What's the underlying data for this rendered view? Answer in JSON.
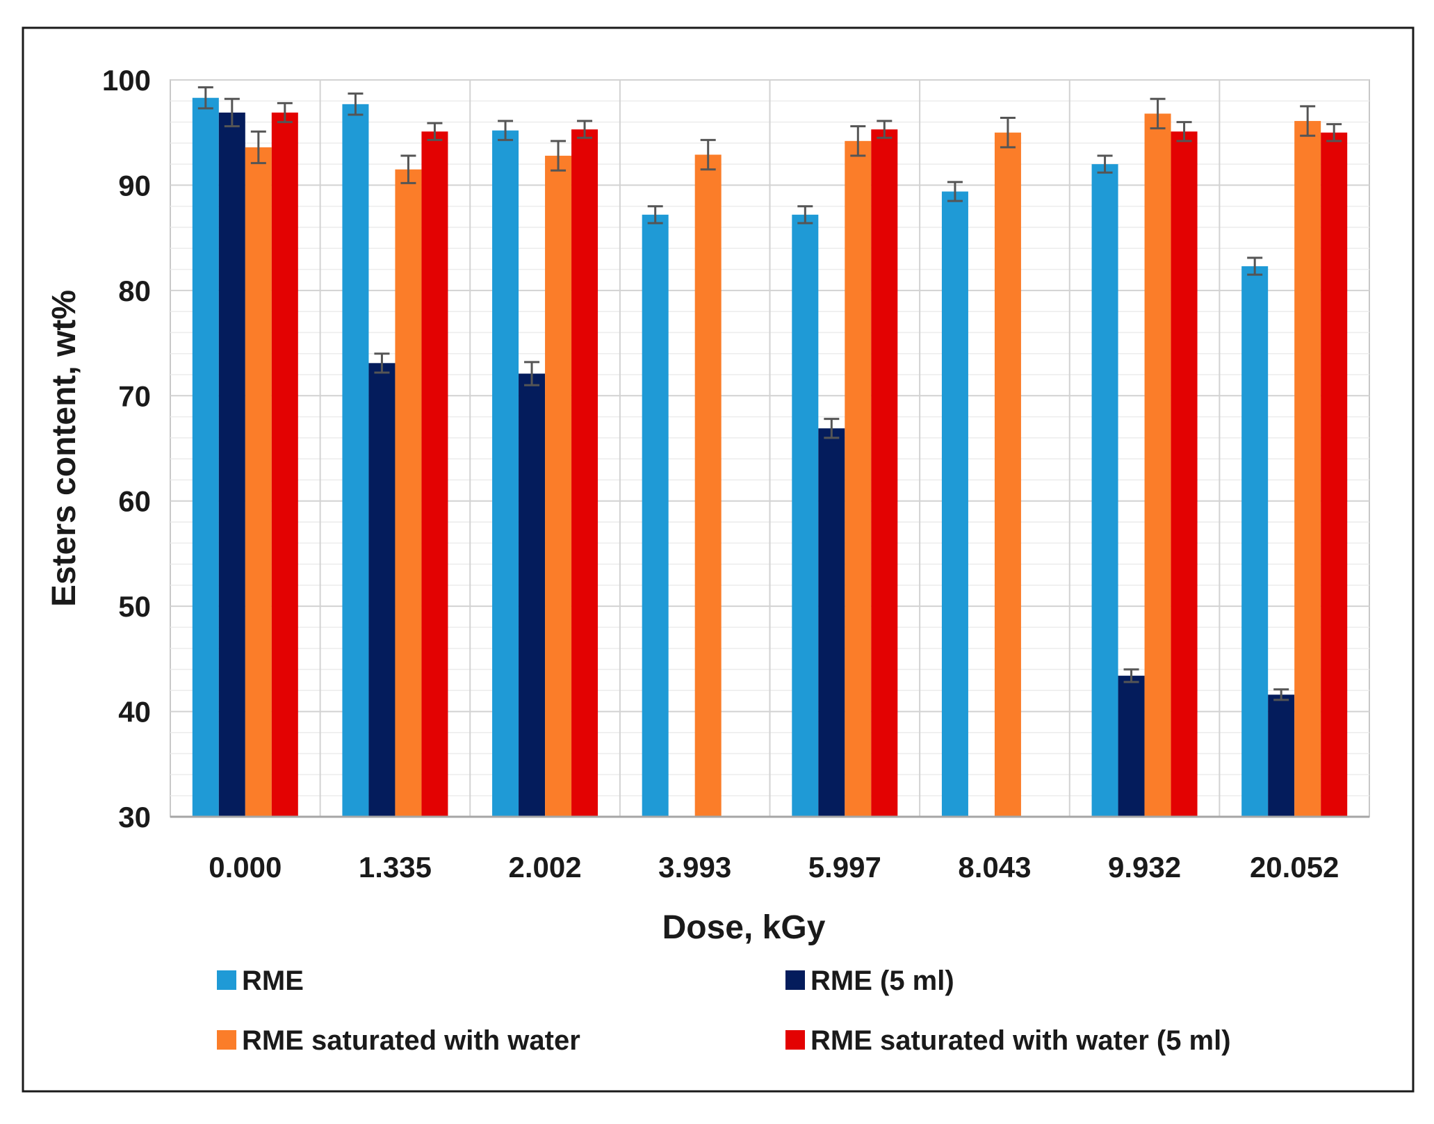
{
  "chart_data": {
    "type": "bar",
    "title": "",
    "xlabel": "Dose, kGy",
    "ylabel": "Esters content, wt%",
    "ylim": [
      30,
      100
    ],
    "yticks": [
      30,
      40,
      50,
      60,
      70,
      80,
      90,
      100
    ],
    "grid": true,
    "legend_position": "bottom",
    "categories": [
      "0.000",
      "1.335",
      "2.002",
      "3.993",
      "5.997",
      "8.043",
      "9.932",
      "20.052"
    ],
    "series": [
      {
        "name": "RME",
        "color": "#1f9ad6",
        "values": [
          98.3,
          97.7,
          95.2,
          87.2,
          87.2,
          89.4,
          92.0,
          82.3
        ],
        "errors": [
          1.0,
          1.0,
          0.9,
          0.8,
          0.8,
          0.9,
          0.8,
          0.8
        ]
      },
      {
        "name": "RME (5 ml)",
        "color": "#041c5c",
        "values": [
          96.9,
          73.1,
          72.1,
          null,
          66.9,
          null,
          43.4,
          41.6
        ],
        "errors": [
          1.3,
          0.9,
          1.1,
          null,
          0.9,
          null,
          0.6,
          0.5
        ]
      },
      {
        "name": "RME saturated with water",
        "color": "#fb7d29",
        "values": [
          93.6,
          91.5,
          92.8,
          92.9,
          94.2,
          95.0,
          96.8,
          96.1
        ],
        "errors": [
          1.5,
          1.3,
          1.4,
          1.4,
          1.4,
          1.4,
          1.4,
          1.4
        ]
      },
      {
        "name": "RME saturated with water (5 ml)",
        "color": "#e30202",
        "values": [
          96.9,
          95.1,
          95.3,
          null,
          95.3,
          null,
          95.1,
          95.0
        ],
        "errors": [
          0.9,
          0.8,
          0.8,
          null,
          0.8,
          null,
          0.9,
          0.8
        ]
      }
    ]
  }
}
